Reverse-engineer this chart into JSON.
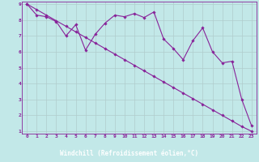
{
  "xlabel": "Windchill (Refroidissement éolien,°C)",
  "background_color": "#c2e8e8",
  "xlabel_bg_color": "#6633aa",
  "grid_color": "#b0cccc",
  "line_color": "#882299",
  "xmin": 0,
  "xmax": 23,
  "ymin": 1,
  "ymax": 9,
  "x_values": [
    0,
    1,
    2,
    3,
    4,
    5,
    6,
    7,
    8,
    9,
    10,
    11,
    12,
    13,
    14,
    15,
    16,
    17,
    18,
    19,
    20,
    21,
    22,
    23
  ],
  "line1_y": [
    9.0,
    8.65,
    8.3,
    7.95,
    7.6,
    7.25,
    6.9,
    6.55,
    6.2,
    5.85,
    5.5,
    5.15,
    4.8,
    4.45,
    4.1,
    3.75,
    3.4,
    3.05,
    2.7,
    2.35,
    2.0,
    1.65,
    1.3,
    1.0
  ],
  "line2_y": [
    9.0,
    8.3,
    8.2,
    7.9,
    7.0,
    7.7,
    6.1,
    7.1,
    7.8,
    8.3,
    8.2,
    8.4,
    8.15,
    8.5,
    6.8,
    6.2,
    5.5,
    6.7,
    7.5,
    6.0,
    5.3,
    5.4,
    3.0,
    1.35
  ],
  "yticks": [
    1,
    2,
    3,
    4,
    5,
    6,
    7,
    8,
    9
  ],
  "xticks": [
    0,
    1,
    2,
    3,
    4,
    5,
    6,
    7,
    8,
    9,
    10,
    11,
    12,
    13,
    14,
    15,
    16,
    17,
    18,
    19,
    20,
    21,
    22,
    23
  ]
}
